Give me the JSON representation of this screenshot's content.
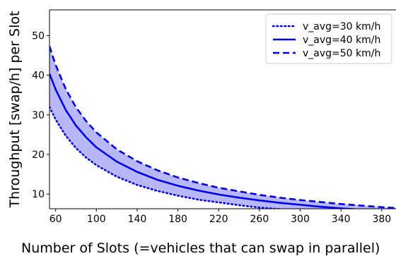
{
  "chart_data": {
    "type": "line",
    "xlabel": "Number of Slots (=vehicles that can swap in parallel)",
    "ylabel": "Throughput [swap/h] per Slot",
    "xlim": [
      54,
      394
    ],
    "ylim": [
      6.3,
      56.5
    ],
    "xticks": [
      60,
      100,
      140,
      180,
      220,
      260,
      300,
      340,
      380
    ],
    "yticks": [
      10,
      20,
      30,
      40,
      50
    ],
    "grid": false,
    "legend_position": "top-right",
    "fill_between": {
      "lower_series": "v_avg=30 km/h",
      "upper_series": "v_avg=50 km/h",
      "color": "#b8b8f8"
    },
    "x": [
      54,
      60,
      70,
      80,
      90,
      100,
      120,
      140,
      160,
      180,
      200,
      220,
      240,
      260,
      280,
      300,
      320,
      340,
      360,
      380,
      394
    ],
    "series": [
      {
        "name": "v_avg=30 km/h",
        "style": "dotted",
        "color": "#0000ee",
        "values": [
          32.0,
          28.8,
          24.7,
          21.6,
          19.2,
          17.3,
          14.4,
          12.3,
          10.8,
          9.6,
          8.6,
          7.9,
          7.2,
          6.6,
          6.2,
          5.8,
          5.4,
          5.1,
          4.8,
          4.5,
          4.4
        ]
      },
      {
        "name": "v_avg=40 km/h",
        "style": "solid",
        "color": "#0000ee",
        "values": [
          40.4,
          36.4,
          31.2,
          27.3,
          24.3,
          21.8,
          18.2,
          15.6,
          13.6,
          12.1,
          10.9,
          9.9,
          9.1,
          8.4,
          7.8,
          7.3,
          6.8,
          6.4,
          6.1,
          5.7,
          5.5
        ]
      },
      {
        "name": "v_avg=50 km/h",
        "style": "dashed",
        "color": "#0000ee",
        "values": [
          47.3,
          42.6,
          36.5,
          31.9,
          28.4,
          25.6,
          21.3,
          18.3,
          16.0,
          14.2,
          12.8,
          11.6,
          10.7,
          9.8,
          9.1,
          8.5,
          8.0,
          7.5,
          7.1,
          6.7,
          6.5
        ]
      }
    ]
  }
}
